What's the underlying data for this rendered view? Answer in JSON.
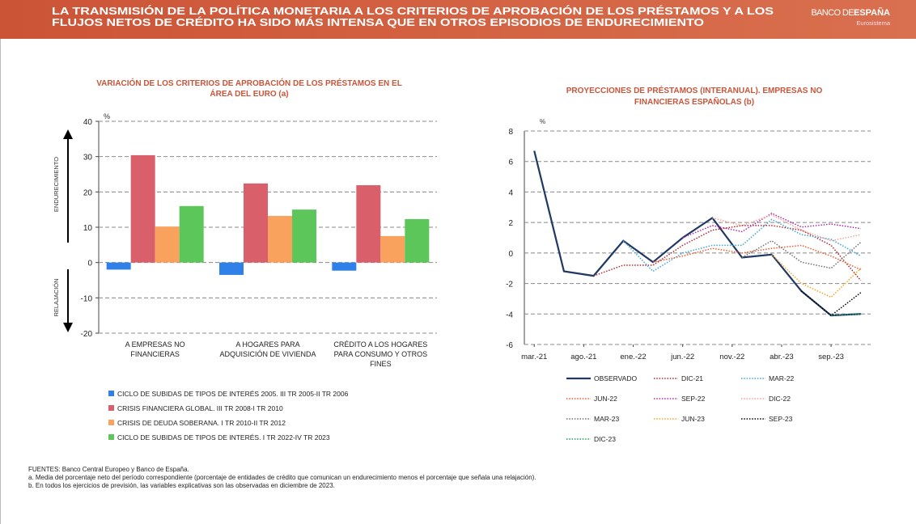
{
  "header": {
    "title_lines": [
      "LA TRANSMISIÓN DE LA POLÍTICA MONETARIA A LOS CRITERIOS DE APROBACIÓN DE LOS PRÉSTAMOS Y A LOS",
      "FLUJOS NETOS DE CRÉDITO HA SIDO MÁS INTENSA QUE EN OTROS EPISODIOS DE ENDURECIMIENTO"
    ],
    "logo_light": "BANCO DE",
    "logo_bold": "ESPAÑA",
    "logo_sub": "Eurosistema"
  },
  "chart_data": [
    {
      "type": "bar",
      "title_lines": [
        "VARIACIÓN DE LOS CRITERIOS DE APROBACIÓN DE LOS PRÉSTAMOS EN EL",
        "ÁREA DEL EURO (a)"
      ],
      "y_unit": "%",
      "annotations": [
        "ENDURECIMIENTO",
        "RELAJACIÓN"
      ],
      "categories": [
        "A EMPRESAS NO FINANCIERAS",
        "A HOGARES PARA ADQUISICIÓN DE VIVIENDA",
        "CRÉDITO A LOS HOGARES PARA CONSUMO Y OTROS FINES"
      ],
      "series": [
        {
          "name": "CICLO DE SUBIDAS DE TIPOS DE INTERÉS 2005. III TR 2005-II TR 2006",
          "color": "#2f80e8",
          "values": [
            -2,
            -3.5,
            -2.3
          ]
        },
        {
          "name": "CRISIS FINANCIERA GLOBAL. III TR 2008-I TR 2010",
          "color": "#d9606b",
          "values": [
            30.4,
            22.4,
            21.9
          ]
        },
        {
          "name": "CRISIS DE DEUDA SOBERANA. I TR 2010-II TR 2012",
          "color": "#f9a25e",
          "values": [
            10.2,
            13.2,
            7.5
          ]
        },
        {
          "name": "CICLO DE SUBIDAS DE TIPOS DE INTERÉS. I TR 2022-IV TR 2023",
          "color": "#5cc65a",
          "values": [
            16,
            15,
            12.3
          ]
        }
      ],
      "ylim": [
        -20,
        40
      ],
      "yticks": [
        -20,
        -10,
        0,
        10,
        20,
        30,
        40
      ],
      "grid": true
    },
    {
      "type": "line",
      "title_lines": [
        "PROYECCIONES DE PRÉSTAMOS (INTERANUAL). EMPRESAS NO",
        "FINANCIERAS ESPAÑOLAS (b)"
      ],
      "y_unit": "%",
      "xlim": [
        -1,
        34
      ],
      "xticks": [
        {
          "value": 0,
          "label": "mar.-21"
        },
        {
          "value": 5,
          "label": "ago.-21"
        },
        {
          "value": 10,
          "label": "ene.-22"
        },
        {
          "value": 15,
          "label": "jun.-22"
        },
        {
          "value": 20,
          "label": "nov.-22"
        },
        {
          "value": 25,
          "label": "abr.-23"
        },
        {
          "value": 30,
          "label": "sep.-23"
        }
      ],
      "ylim": [
        -6,
        8
      ],
      "yticks": [
        -6,
        -4,
        -2,
        0,
        2,
        4,
        6,
        8
      ],
      "grid": true,
      "series": [
        {
          "name": "OBSERVADO",
          "color": "#1f3864",
          "style": "solid",
          "x": [
            0,
            3,
            6,
            9,
            12,
            15,
            18,
            21,
            24,
            27,
            30,
            33
          ],
          "values": [
            6.7,
            -1.2,
            -1.5,
            0.8,
            -0.6,
            1.0,
            2.3,
            -0.3,
            -0.1,
            -2.5,
            -4.1,
            -4.0
          ]
        },
        {
          "name": "DIC-21",
          "color": "#b0282f",
          "style": "dotted",
          "x": [
            6,
            9,
            12,
            15,
            18,
            21,
            24,
            27,
            30,
            33
          ],
          "values": [
            -1.5,
            -0.8,
            -0.8,
            0.5,
            1.5,
            1.8,
            1.8,
            1.5,
            0.5,
            -1.8
          ]
        },
        {
          "name": "MAR-22",
          "color": "#3fa6d6",
          "style": "dotted",
          "x": [
            9,
            12,
            15,
            18,
            21,
            24,
            27,
            30,
            33
          ],
          "values": [
            0.8,
            -1.2,
            0.0,
            0.5,
            0.5,
            2.2,
            1.2,
            0.9,
            -0.2
          ]
        },
        {
          "name": "JUN-22",
          "color": "#f2592a",
          "style": "dotted",
          "x": [
            12,
            15,
            18,
            21,
            24,
            27,
            30,
            33
          ],
          "values": [
            -0.6,
            -0.2,
            0.3,
            0.0,
            0.3,
            0.5,
            -0.2,
            -1.1
          ]
        },
        {
          "name": "SEP-22",
          "color": "#b02aa8",
          "style": "dotted",
          "x": [
            15,
            18,
            21,
            24,
            27,
            30,
            33
          ],
          "values": [
            1.0,
            1.8,
            1.4,
            2.6,
            1.7,
            1.9,
            1.6
          ]
        },
        {
          "name": "DIC-22",
          "color": "#f1a09a",
          "style": "dotted",
          "x": [
            18,
            21,
            24,
            27,
            30,
            33
          ],
          "values": [
            2.3,
            1.8,
            2.5,
            1.5,
            0.8,
            1.2
          ]
        },
        {
          "name": "MAR-23",
          "color": "#707070",
          "style": "dotted",
          "x": [
            21,
            24,
            27,
            30,
            33
          ],
          "values": [
            -0.3,
            0.8,
            -0.6,
            -1.0,
            0.7
          ]
        },
        {
          "name": "JUN-23",
          "color": "#f4a623",
          "style": "dotted",
          "x": [
            24,
            27,
            30,
            33
          ],
          "values": [
            -0.1,
            -2.0,
            -2.9,
            -1.0
          ]
        },
        {
          "name": "SEP-23",
          "color": "#000000",
          "style": "dotted",
          "x": [
            27,
            30,
            33
          ],
          "values": [
            -2.5,
            -4.1,
            -2.6
          ]
        },
        {
          "name": "DIC-23",
          "color": "#1a9e5a",
          "style": "dotted",
          "x": [
            30,
            33
          ],
          "values": [
            -4.1,
            -4.0
          ]
        }
      ]
    }
  ],
  "footnotes": [
    "FUENTES: Banco Central Europeo y Banco de España.",
    "a.  Media del porcentaje neto del período correspondiente (porcentaje de entidades de crédito que comunican un endurecimiento menos el porcentaje que señala una relajación).",
    "b.  En todos los ejercicios de previsión, las variables explicativas son las observadas en diciembre de 2023."
  ]
}
